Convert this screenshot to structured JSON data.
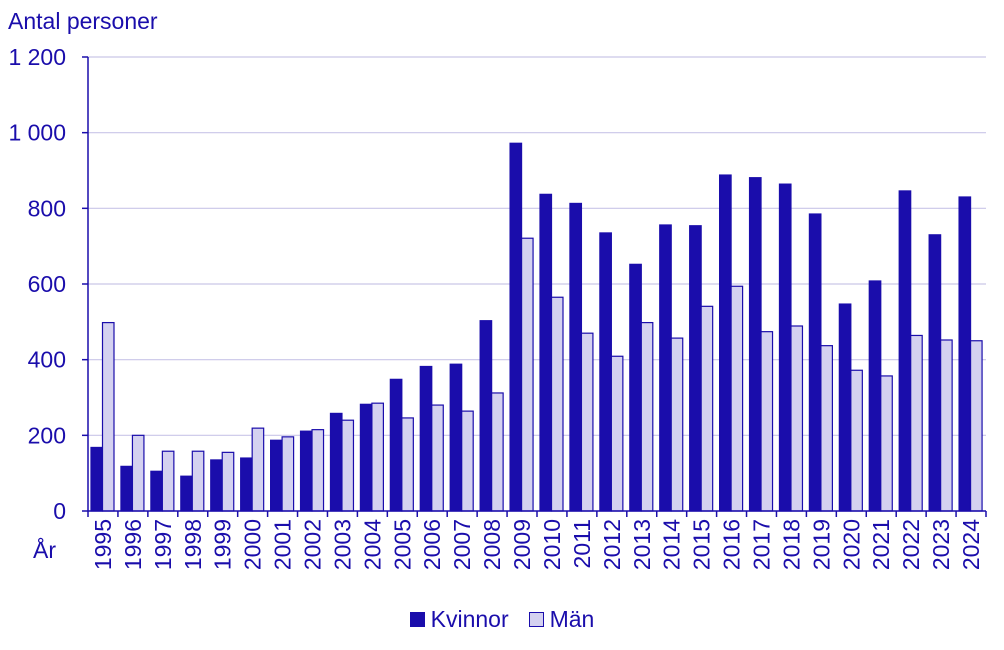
{
  "chart_data": {
    "type": "bar",
    "title": "",
    "ylabel": "Antal personer",
    "xlabel": "År",
    "ylim": [
      0,
      1200
    ],
    "yticks": [
      0,
      200,
      400,
      600,
      800,
      1000,
      1200
    ],
    "ytick_labels": [
      "0",
      "200",
      "400",
      "600",
      "800",
      "1 000",
      "1 200"
    ],
    "grid": true,
    "legend_position": "bottom",
    "categories": [
      "1995",
      "1996",
      "1997",
      "1998",
      "1999",
      "2000",
      "2001",
      "2002",
      "2003",
      "2004",
      "2005",
      "2006",
      "2007",
      "2008",
      "2009",
      "2010",
      "2011",
      "2012",
      "2013",
      "2014",
      "2015",
      "2016",
      "2017",
      "2018",
      "2019",
      "2020",
      "2021",
      "2022",
      "2023",
      "2024"
    ],
    "series": [
      {
        "name": "Kvinnor",
        "color": "#1a0dab",
        "values": [
          168,
          118,
          105,
          92,
          135,
          140,
          187,
          211,
          258,
          282,
          348,
          382,
          388,
          503,
          972,
          837,
          813,
          735,
          652,
          756,
          754,
          888,
          881,
          864,
          785,
          547,
          608,
          846,
          730,
          830
        ]
      },
      {
        "name": "Män",
        "color": "#d4d1f0",
        "values": [
          498,
          200,
          158,
          158,
          155,
          219,
          196,
          215,
          240,
          285,
          246,
          280,
          264,
          312,
          721,
          565,
          470,
          409,
          498,
          457,
          541,
          594,
          474,
          489,
          437,
          372,
          357,
          464,
          452,
          450
        ]
      }
    ]
  }
}
